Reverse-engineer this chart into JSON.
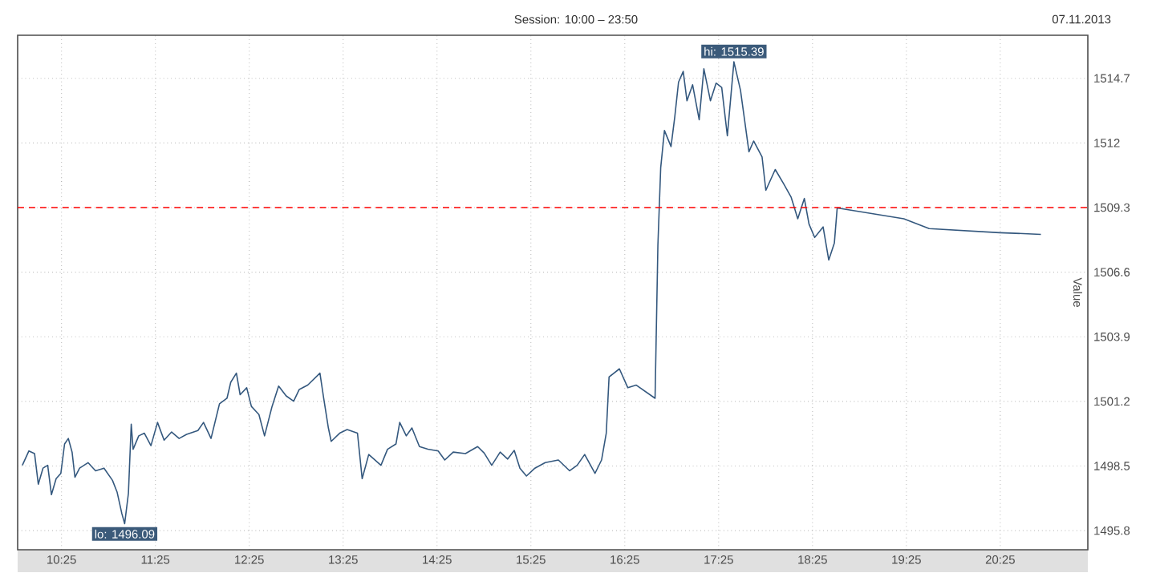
{
  "chart_data": {
    "type": "line",
    "title": "Session: 10:00 – 23:50",
    "ylabel": "Value",
    "annotations": [
      "07.11.2013",
      {
        "text": "hi: 1515.39",
        "x": 17.58,
        "y": 1515.39
      },
      {
        "text": "lo: 1496.09",
        "x": 11.09,
        "y": 1496.09
      }
    ],
    "x": [
      10.0,
      10.07,
      10.13,
      10.17,
      10.22,
      10.27,
      10.31,
      10.36,
      10.41,
      10.45,
      10.49,
      10.53,
      10.56,
      10.61,
      10.7,
      10.78,
      10.87,
      10.96,
      11.01,
      11.06,
      11.09,
      11.13,
      11.16,
      11.18,
      11.24,
      11.3,
      11.37,
      11.44,
      11.51,
      11.59,
      11.67,
      11.75,
      11.87,
      11.93,
      12.01,
      12.1,
      12.18,
      12.22,
      12.28,
      12.32,
      12.39,
      12.44,
      12.52,
      12.58,
      12.66,
      12.73,
      12.81,
      12.89,
      12.95,
      13.04,
      13.17,
      13.21,
      13.26,
      13.29,
      13.38,
      13.46,
      13.57,
      13.62,
      13.69,
      13.82,
      13.89,
      13.98,
      14.02,
      14.09,
      14.15,
      14.23,
      14.32,
      14.43,
      14.5,
      14.59,
      14.72,
      14.85,
      14.92,
      15.0,
      15.09,
      15.17,
      15.24,
      15.3,
      15.37,
      15.46,
      15.57,
      15.71,
      15.83,
      15.91,
      15.99,
      16.1,
      16.17,
      16.22,
      16.25,
      16.36,
      16.45,
      16.54,
      16.74,
      16.77,
      16.8,
      16.84,
      16.91,
      16.95,
      16.99,
      17.04,
      17.08,
      17.14,
      17.21,
      17.26,
      17.33,
      17.39,
      17.45,
      17.51,
      17.58,
      17.65,
      17.74,
      17.79,
      17.88,
      17.92,
      18.02,
      18.11,
      18.19,
      18.26,
      18.33,
      18.38,
      18.44,
      18.53,
      18.59,
      18.65,
      18.68,
      18.76,
      19.39,
      19.66,
      20.41,
      20.85
    ],
    "series": [
      {
        "color": "#34587e",
        "values": [
          1498.53,
          1499.13,
          1499.02,
          1497.74,
          1498.41,
          1498.53,
          1497.3,
          1497.97,
          1498.19,
          1499.42,
          1499.65,
          1499.08,
          1498.03,
          1498.41,
          1498.64,
          1498.3,
          1498.41,
          1497.9,
          1497.4,
          1496.51,
          1496.09,
          1497.36,
          1500.25,
          1499.2,
          1499.76,
          1499.87,
          1499.35,
          1500.32,
          1499.58,
          1499.92,
          1499.65,
          1499.82,
          1499.98,
          1500.32,
          1499.65,
          1501.1,
          1501.33,
          1502.0,
          1502.38,
          1501.48,
          1501.77,
          1500.99,
          1500.65,
          1499.76,
          1500.99,
          1501.84,
          1501.43,
          1501.21,
          1501.7,
          1501.88,
          1502.38,
          1501.33,
          1500.09,
          1499.53,
          1499.87,
          1500.02,
          1499.87,
          1497.97,
          1498.98,
          1498.53,
          1499.2,
          1499.42,
          1500.32,
          1499.76,
          1500.09,
          1499.31,
          1499.2,
          1499.13,
          1498.75,
          1499.08,
          1499.02,
          1499.31,
          1499.04,
          1498.53,
          1499.08,
          1498.79,
          1499.15,
          1498.41,
          1498.08,
          1498.41,
          1498.64,
          1498.75,
          1498.3,
          1498.53,
          1498.98,
          1498.19,
          1498.75,
          1499.87,
          1502.22,
          1502.56,
          1501.77,
          1501.88,
          1501.33,
          1507.71,
          1510.96,
          1512.52,
          1511.85,
          1513.09,
          1514.54,
          1514.99,
          1513.76,
          1514.43,
          1512.97,
          1515.1,
          1513.76,
          1514.5,
          1514.32,
          1512.3,
          1515.39,
          1514.2,
          1511.63,
          1512.08,
          1511.41,
          1510.02,
          1510.89,
          1510.29,
          1509.73,
          1508.83,
          1509.68,
          1508.61,
          1508.05,
          1508.49,
          1507.11,
          1507.82,
          1509.28,
          1509.23,
          1508.83,
          1508.42,
          1508.25,
          1508.18
        ]
      }
    ],
    "xlim": [
      9.95,
      21.35
    ],
    "ylim": [
      1495.0,
      1516.5
    ],
    "xticks": [
      {
        "value": 10.417,
        "label": "10:25"
      },
      {
        "value": 11.417,
        "label": "11:25"
      },
      {
        "value": 12.417,
        "label": "12:25"
      },
      {
        "value": 13.417,
        "label": "13:25"
      },
      {
        "value": 14.417,
        "label": "14:25"
      },
      {
        "value": 15.417,
        "label": "15:25"
      },
      {
        "value": 16.417,
        "label": "16:25"
      },
      {
        "value": 17.417,
        "label": "17:25"
      },
      {
        "value": 18.417,
        "label": "18:25"
      },
      {
        "value": 19.417,
        "label": "19:25"
      },
      {
        "value": 20.417,
        "label": "20:25"
      }
    ],
    "yticks": [
      1495.8,
      1498.5,
      1501.2,
      1503.9,
      1506.6,
      1509.3,
      1512,
      1514.7
    ],
    "grid": true,
    "marker": "none",
    "ref_lines": [
      {
        "axis": "y",
        "value": 1509.3,
        "color": "#ff0000",
        "line_style": "dashed"
      }
    ]
  }
}
